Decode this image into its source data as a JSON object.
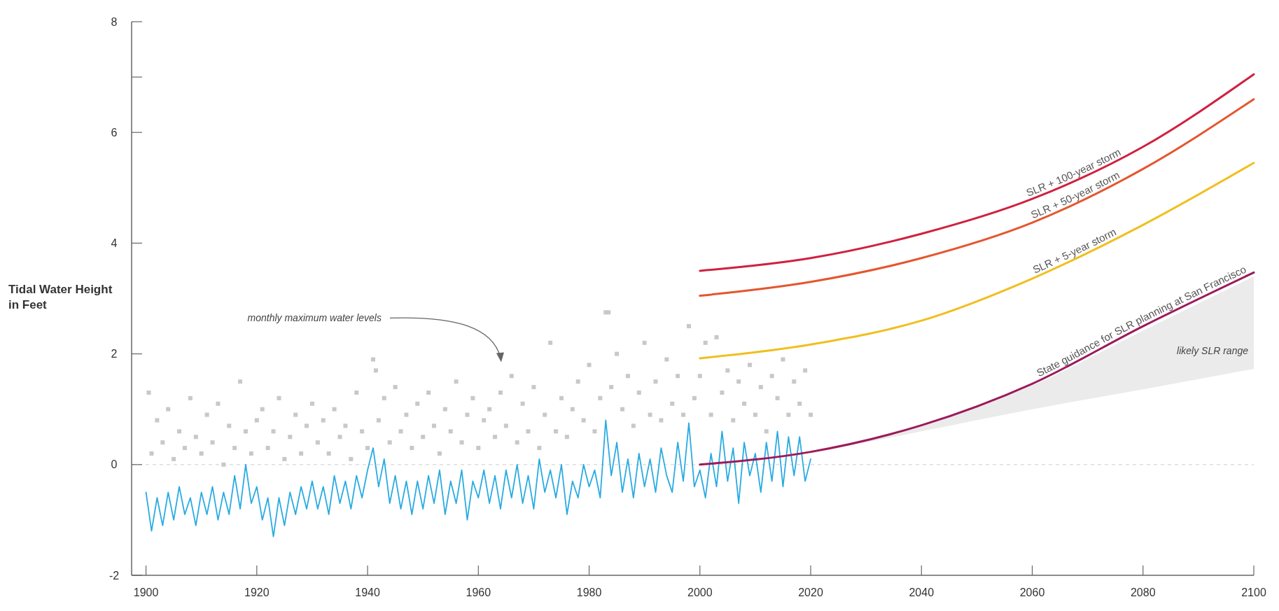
{
  "chart_data": {
    "type": "line",
    "ylabel": "Tidal Water Height in Feet",
    "xlim": [
      1897.4,
      2100
    ],
    "ylim": [
      -2,
      8
    ],
    "xticks": [
      1900,
      1920,
      1940,
      1960,
      1980,
      2000,
      2020,
      2040,
      2060,
      2080,
      2100
    ],
    "yticks": [
      -2,
      0,
      2,
      4,
      6,
      {
        "value": 7,
        "label": null
      },
      8
    ],
    "grid": false,
    "annotations": [
      "monthly maximum water levels",
      "likely SLR range"
    ],
    "ref_lines": [
      {
        "axis": "y",
        "value": 0,
        "label": null,
        "color": "#dddddd",
        "line_style": "dashed"
      }
    ],
    "series": [
      {
        "type": "scatter",
        "marker": "square",
        "color": "#c8c8c8",
        "x": [
          1900.5,
          1901,
          1902,
          1903,
          1904,
          1905,
          1906,
          1907,
          1908,
          1909,
          1910,
          1911,
          1912,
          1913,
          1914,
          1915,
          1916,
          1917,
          1918,
          1919,
          1920,
          1921,
          1922,
          1923,
          1924,
          1925,
          1926,
          1927,
          1928,
          1929,
          1930,
          1931,
          1932,
          1933,
          1934,
          1935,
          1936,
          1937,
          1938,
          1939,
          1940,
          1941,
          1941.5,
          1942,
          1943,
          1944,
          1945,
          1946,
          1947,
          1948,
          1949,
          1950,
          1951,
          1952,
          1953,
          1954,
          1955,
          1956,
          1957,
          1958,
          1959,
          1960,
          1961,
          1962,
          1963,
          1964,
          1965,
          1966,
          1967,
          1968,
          1969,
          1970,
          1971,
          1972,
          1973,
          1974,
          1975,
          1976,
          1977,
          1978,
          1979,
          1980,
          1981,
          1982,
          1983,
          1983.5,
          1984,
          1985,
          1986,
          1987,
          1988,
          1989,
          1990,
          1991,
          1992,
          1993,
          1994,
          1995,
          1996,
          1997,
          1998,
          1999,
          2000,
          2001,
          2002,
          2003,
          2004,
          2005,
          2006,
          2007,
          2008,
          2009,
          2010,
          2011,
          2012,
          2013,
          2014,
          2015,
          2016,
          2017,
          2018,
          2019,
          2020
        ],
        "values": [
          1.3,
          0.2,
          0.8,
          0.4,
          1.0,
          0.1,
          0.6,
          0.3,
          1.2,
          0.5,
          0.2,
          0.9,
          0.4,
          1.1,
          0.0,
          0.7,
          0.3,
          1.5,
          0.6,
          0.2,
          0.8,
          1.0,
          0.3,
          0.6,
          1.2,
          0.1,
          0.5,
          0.9,
          0.2,
          0.7,
          1.1,
          0.4,
          0.8,
          0.2,
          1.0,
          0.5,
          0.7,
          0.1,
          1.3,
          0.6,
          0.3,
          1.9,
          1.7,
          0.8,
          1.2,
          0.4,
          1.4,
          0.6,
          0.9,
          0.3,
          1.1,
          0.5,
          1.3,
          0.7,
          0.2,
          1.0,
          0.6,
          1.5,
          0.4,
          0.9,
          1.2,
          0.3,
          0.8,
          1.0,
          0.5,
          1.3,
          0.7,
          1.6,
          0.4,
          1.1,
          0.6,
          1.4,
          0.3,
          0.9,
          2.2,
          0.6,
          1.2,
          0.5,
          1.0,
          1.5,
          0.8,
          1.8,
          0.6,
          1.2,
          2.75,
          2.75,
          1.4,
          2.0,
          1.0,
          1.6,
          0.7,
          1.3,
          2.2,
          0.9,
          1.5,
          0.8,
          1.9,
          1.1,
          1.6,
          0.9,
          2.5,
          1.2,
          1.6,
          2.2,
          0.9,
          2.3,
          1.3,
          1.7,
          0.8,
          1.5,
          1.1,
          1.8,
          0.9,
          1.4,
          0.6,
          1.6,
          1.2,
          1.9,
          0.9,
          1.5,
          1.1,
          1.7,
          0.9
        ]
      },
      {
        "marker": "none",
        "color": "#29abe2",
        "x": [
          1900,
          1901,
          1902,
          1903,
          1904,
          1905,
          1906,
          1907,
          1908,
          1909,
          1910,
          1911,
          1912,
          1913,
          1914,
          1915,
          1916,
          1917,
          1918,
          1919,
          1920,
          1921,
          1922,
          1923,
          1924,
          1925,
          1926,
          1927,
          1928,
          1929,
          1930,
          1931,
          1932,
          1933,
          1934,
          1935,
          1936,
          1937,
          1938,
          1939,
          1940,
          1941,
          1942,
          1943,
          1944,
          1945,
          1946,
          1947,
          1948,
          1949,
          1950,
          1951,
          1952,
          1953,
          1954,
          1955,
          1956,
          1957,
          1958,
          1959,
          1960,
          1961,
          1962,
          1963,
          1964,
          1965,
          1966,
          1967,
          1968,
          1969,
          1970,
          1971,
          1972,
          1973,
          1974,
          1975,
          1976,
          1977,
          1978,
          1979,
          1980,
          1981,
          1982,
          1983,
          1984,
          1985,
          1986,
          1987,
          1988,
          1989,
          1990,
          1991,
          1992,
          1993,
          1994,
          1995,
          1996,
          1997,
          1998,
          1999,
          2000,
          2001,
          2002,
          2003,
          2004,
          2005,
          2006,
          2007,
          2008,
          2009,
          2010,
          2011,
          2012,
          2013,
          2014,
          2015,
          2016,
          2017,
          2018,
          2019,
          2020
        ],
        "values": [
          -0.5,
          -1.2,
          -0.6,
          -1.1,
          -0.5,
          -1.0,
          -0.4,
          -0.9,
          -0.6,
          -1.1,
          -0.5,
          -0.9,
          -0.4,
          -1.0,
          -0.5,
          -0.9,
          -0.2,
          -0.8,
          0.0,
          -0.7,
          -0.4,
          -1.0,
          -0.6,
          -1.3,
          -0.6,
          -1.1,
          -0.5,
          -0.9,
          -0.4,
          -0.8,
          -0.3,
          -0.8,
          -0.4,
          -0.9,
          -0.2,
          -0.7,
          -0.3,
          -0.8,
          -0.2,
          -0.6,
          -0.1,
          0.3,
          -0.4,
          0.1,
          -0.7,
          -0.2,
          -0.8,
          -0.3,
          -0.9,
          -0.3,
          -0.8,
          -0.2,
          -0.7,
          -0.1,
          -0.9,
          -0.3,
          -0.7,
          -0.1,
          -1.0,
          -0.3,
          -0.6,
          -0.1,
          -0.7,
          -0.2,
          -0.8,
          -0.1,
          -0.6,
          0.0,
          -0.7,
          -0.2,
          -0.8,
          0.1,
          -0.5,
          -0.1,
          -0.6,
          0.0,
          -0.9,
          -0.3,
          -0.6,
          0.0,
          -0.4,
          -0.1,
          -0.6,
          0.8,
          -0.2,
          0.4,
          -0.5,
          0.1,
          -0.6,
          0.2,
          -0.4,
          0.1,
          -0.5,
          0.3,
          -0.2,
          -0.5,
          0.4,
          -0.3,
          0.75,
          -0.4,
          -0.1,
          -0.6,
          0.2,
          -0.4,
          0.6,
          -0.3,
          0.3,
          -0.7,
          0.4,
          -0.2,
          0.2,
          -0.5,
          0.4,
          -0.3,
          0.6,
          -0.4,
          0.5,
          -0.2,
          0.5,
          -0.3,
          0.1
        ]
      },
      {
        "marker": "none",
        "name": "SLR + 100-year storm",
        "color": "#d0213f",
        "x": [
          2000,
          2020,
          2040,
          2060,
          2080,
          2100
        ],
        "values": [
          3.5,
          3.73,
          4.17,
          4.8,
          5.74,
          7.05
        ]
      },
      {
        "marker": "none",
        "name": "SLR + 50-year storm",
        "color": "#e5562e",
        "x": [
          2000,
          2020,
          2040,
          2060,
          2080,
          2100
        ],
        "values": [
          3.05,
          3.3,
          3.73,
          4.37,
          5.34,
          6.6
        ]
      },
      {
        "marker": "none",
        "name": "SLR + 5-year storm",
        "color": "#f0bf1f",
        "x": [
          2000,
          2020,
          2040,
          2060,
          2080,
          2100
        ],
        "values": [
          1.92,
          2.17,
          2.6,
          3.36,
          4.33,
          5.45
        ]
      },
      {
        "marker": "none",
        "name": "State guidance for SLR planning at San Francisco",
        "color": "#9c1a5b",
        "x": [
          2000,
          2020,
          2040,
          2060,
          2080,
          2100
        ],
        "values": [
          0,
          0.23,
          0.71,
          1.46,
          2.5,
          3.47
        ],
        "lower": [
          null,
          0.2,
          0.6,
          1.0,
          1.36,
          1.73
        ],
        "upper": [
          null,
          0.23,
          0.7,
          1.43,
          2.42,
          3.4
        ]
      }
    ]
  }
}
